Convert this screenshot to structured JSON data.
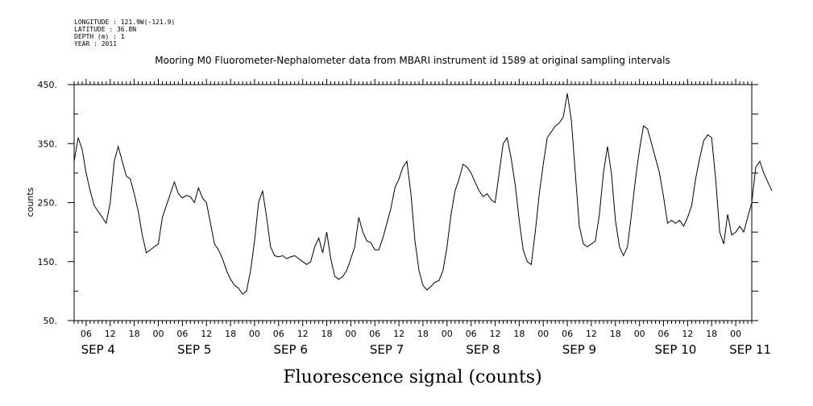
{
  "header": {
    "meta_lines": [
      "LONGITUDE : 121.9W(-121.9)",
      "LATITUDE : 36.8N",
      "DEPTH (m) : 1",
      "YEAR : 2011"
    ],
    "title": "Mooring M0 Fluorometer-Nephalometer data from MBARI instrument id 1589 at original sampling intervals"
  },
  "chart_data": {
    "type": "line",
    "title": "Mooring M0 Fluorometer-Nephalometer data from MBARI instrument id 1589 at original sampling intervals",
    "xlabel": "Fluorescence signal (counts)",
    "ylabel": "counts",
    "ylim": [
      50,
      450
    ],
    "yticks": [
      50,
      150,
      250,
      350,
      450
    ],
    "ytick_labels": [
      "50.",
      "150.",
      "250.",
      "350.",
      "450."
    ],
    "xlim": [
      "2011-09-04T03:00",
      "2011-09-11T04:00"
    ],
    "hour_tick_labels": [
      "06",
      "12",
      "18",
      "00",
      "06",
      "12",
      "18",
      "00",
      "06",
      "12",
      "18",
      "00",
      "06",
      "12",
      "18",
      "00",
      "06",
      "12",
      "18",
      "00",
      "06",
      "12",
      "18",
      "00",
      "06",
      "12",
      "18",
      "00"
    ],
    "day_labels": [
      "SEP  4",
      "SEP  5",
      "SEP  6",
      "SEP  7",
      "SEP  8",
      "SEP  9",
      "SEP 10",
      "SEP 11"
    ],
    "grid": false,
    "series": [
      {
        "color": "#000000",
        "points": [
          [
            "2011-09-04T03:00",
            320
          ],
          [
            "2011-09-04T04:00",
            360
          ],
          [
            "2011-09-04T05:00",
            340
          ],
          [
            "2011-09-04T06:00",
            300
          ],
          [
            "2011-09-04T07:00",
            270
          ],
          [
            "2011-09-04T08:00",
            245
          ],
          [
            "2011-09-04T09:00",
            235
          ],
          [
            "2011-09-04T10:00",
            225
          ],
          [
            "2011-09-04T11:00",
            215
          ],
          [
            "2011-09-04T12:00",
            250
          ],
          [
            "2011-09-04T13:00",
            320
          ],
          [
            "2011-09-04T14:00",
            345
          ],
          [
            "2011-09-04T15:00",
            320
          ],
          [
            "2011-09-04T16:00",
            295
          ],
          [
            "2011-09-04T17:00",
            290
          ],
          [
            "2011-09-04T18:00",
            265
          ],
          [
            "2011-09-04T19:00",
            235
          ],
          [
            "2011-09-04T20:00",
            195
          ],
          [
            "2011-09-04T21:00",
            165
          ],
          [
            "2011-09-04T22:00",
            170
          ],
          [
            "2011-09-04T23:00",
            175
          ],
          [
            "2011-09-05T00:00",
            180
          ],
          [
            "2011-09-05T01:00",
            225
          ],
          [
            "2011-09-05T02:00",
            245
          ],
          [
            "2011-09-05T03:00",
            265
          ],
          [
            "2011-09-05T04:00",
            285
          ],
          [
            "2011-09-05T05:00",
            265
          ],
          [
            "2011-09-05T06:00",
            258
          ],
          [
            "2011-09-05T07:00",
            262
          ],
          [
            "2011-09-05T08:00",
            260
          ],
          [
            "2011-09-05T09:00",
            250
          ],
          [
            "2011-09-05T10:00",
            275
          ],
          [
            "2011-09-05T11:00",
            258
          ],
          [
            "2011-09-05T12:00",
            250
          ],
          [
            "2011-09-05T13:00",
            215
          ],
          [
            "2011-09-05T14:00",
            180
          ],
          [
            "2011-09-05T15:00",
            170
          ],
          [
            "2011-09-05T16:00",
            155
          ],
          [
            "2011-09-05T17:00",
            135
          ],
          [
            "2011-09-05T18:00",
            120
          ],
          [
            "2011-09-05T19:00",
            110
          ],
          [
            "2011-09-05T20:00",
            105
          ],
          [
            "2011-09-05T21:00",
            95
          ],
          [
            "2011-09-05T22:00",
            100
          ],
          [
            "2011-09-05T23:00",
            135
          ],
          [
            "2011-09-06T00:00",
            185
          ],
          [
            "2011-09-06T01:00",
            250
          ],
          [
            "2011-09-06T02:00",
            270
          ],
          [
            "2011-09-06T03:00",
            225
          ],
          [
            "2011-09-06T04:00",
            175
          ],
          [
            "2011-09-06T05:00",
            160
          ],
          [
            "2011-09-06T06:00",
            158
          ],
          [
            "2011-09-06T07:00",
            160
          ],
          [
            "2011-09-06T08:00",
            155
          ],
          [
            "2011-09-06T09:00",
            158
          ],
          [
            "2011-09-06T10:00",
            160
          ],
          [
            "2011-09-06T11:00",
            155
          ],
          [
            "2011-09-06T12:00",
            150
          ],
          [
            "2011-09-06T13:00",
            145
          ],
          [
            "2011-09-06T14:00",
            150
          ],
          [
            "2011-09-06T15:00",
            175
          ],
          [
            "2011-09-06T16:00",
            190
          ],
          [
            "2011-09-06T17:00",
            165
          ],
          [
            "2011-09-06T18:00",
            200
          ],
          [
            "2011-09-06T19:00",
            155
          ],
          [
            "2011-09-06T20:00",
            125
          ],
          [
            "2011-09-06T21:00",
            120
          ],
          [
            "2011-09-06T22:00",
            125
          ],
          [
            "2011-09-06T23:00",
            135
          ],
          [
            "2011-09-07T00:00",
            155
          ],
          [
            "2011-09-07T01:00",
            175
          ],
          [
            "2011-09-07T02:00",
            225
          ],
          [
            "2011-09-07T03:00",
            200
          ],
          [
            "2011-09-07T04:00",
            185
          ],
          [
            "2011-09-07T05:00",
            182
          ],
          [
            "2011-09-07T06:00",
            170
          ],
          [
            "2011-09-07T07:00",
            170
          ],
          [
            "2011-09-07T08:00",
            190
          ],
          [
            "2011-09-07T09:00",
            215
          ],
          [
            "2011-09-07T10:00",
            240
          ],
          [
            "2011-09-07T11:00",
            275
          ],
          [
            "2011-09-07T12:00",
            290
          ],
          [
            "2011-09-07T13:00",
            310
          ],
          [
            "2011-09-07T14:00",
            320
          ],
          [
            "2011-09-07T15:00",
            265
          ],
          [
            "2011-09-07T16:00",
            185
          ],
          [
            "2011-09-07T17:00",
            135
          ],
          [
            "2011-09-07T18:00",
            110
          ],
          [
            "2011-09-07T19:00",
            102
          ],
          [
            "2011-09-07T20:00",
            108
          ],
          [
            "2011-09-07T21:00",
            115
          ],
          [
            "2011-09-07T22:00",
            118
          ],
          [
            "2011-09-07T23:00",
            135
          ],
          [
            "2011-09-08T00:00",
            175
          ],
          [
            "2011-09-08T01:00",
            230
          ],
          [
            "2011-09-08T02:00",
            270
          ],
          [
            "2011-09-08T03:00",
            290
          ],
          [
            "2011-09-08T04:00",
            315
          ],
          [
            "2011-09-08T05:00",
            310
          ],
          [
            "2011-09-08T06:00",
            300
          ],
          [
            "2011-09-08T07:00",
            285
          ],
          [
            "2011-09-08T08:00",
            270
          ],
          [
            "2011-09-08T09:00",
            260
          ],
          [
            "2011-09-08T10:00",
            265
          ],
          [
            "2011-09-08T11:00",
            255
          ],
          [
            "2011-09-08T12:00",
            250
          ],
          [
            "2011-09-08T13:00",
            300
          ],
          [
            "2011-09-08T14:00",
            350
          ],
          [
            "2011-09-08T15:00",
            360
          ],
          [
            "2011-09-08T16:00",
            325
          ],
          [
            "2011-09-08T17:00",
            280
          ],
          [
            "2011-09-08T18:00",
            220
          ],
          [
            "2011-09-08T19:00",
            170
          ],
          [
            "2011-09-08T20:00",
            150
          ],
          [
            "2011-09-08T21:00",
            145
          ],
          [
            "2011-09-08T22:00",
            200
          ],
          [
            "2011-09-08T23:00",
            265
          ],
          [
            "2011-09-09T00:00",
            315
          ],
          [
            "2011-09-09T01:00",
            360
          ],
          [
            "2011-09-09T02:00",
            370
          ],
          [
            "2011-09-09T03:00",
            380
          ],
          [
            "2011-09-09T04:00",
            385
          ],
          [
            "2011-09-09T05:00",
            395
          ],
          [
            "2011-09-09T06:00",
            435
          ],
          [
            "2011-09-09T07:00",
            390
          ],
          [
            "2011-09-09T08:00",
            300
          ],
          [
            "2011-09-09T09:00",
            210
          ],
          [
            "2011-09-09T10:00",
            180
          ],
          [
            "2011-09-09T11:00",
            175
          ],
          [
            "2011-09-09T12:00",
            180
          ],
          [
            "2011-09-09T13:00",
            185
          ],
          [
            "2011-09-09T14:00",
            230
          ],
          [
            "2011-09-09T15:00",
            300
          ],
          [
            "2011-09-09T16:00",
            345
          ],
          [
            "2011-09-09T17:00",
            300
          ],
          [
            "2011-09-09T18:00",
            220
          ],
          [
            "2011-09-09T19:00",
            175
          ],
          [
            "2011-09-09T20:00",
            160
          ],
          [
            "2011-09-09T21:00",
            175
          ],
          [
            "2011-09-09T22:00",
            230
          ],
          [
            "2011-09-09T23:00",
            290
          ],
          [
            "2011-09-10T00:00",
            340
          ],
          [
            "2011-09-10T01:00",
            380
          ],
          [
            "2011-09-10T02:00",
            375
          ],
          [
            "2011-09-10T03:00",
            350
          ],
          [
            "2011-09-10T04:00",
            325
          ],
          [
            "2011-09-10T05:00",
            300
          ],
          [
            "2011-09-10T06:00",
            260
          ],
          [
            "2011-09-10T07:00",
            215
          ],
          [
            "2011-09-10T08:00",
            220
          ],
          [
            "2011-09-10T09:00",
            215
          ],
          [
            "2011-09-10T10:00",
            220
          ],
          [
            "2011-09-10T11:00",
            210
          ],
          [
            "2011-09-10T12:00",
            225
          ],
          [
            "2011-09-10T13:00",
            245
          ],
          [
            "2011-09-10T14:00",
            290
          ],
          [
            "2011-09-10T15:00",
            325
          ],
          [
            "2011-09-10T16:00",
            355
          ],
          [
            "2011-09-10T17:00",
            365
          ],
          [
            "2011-09-10T18:00",
            360
          ],
          [
            "2011-09-10T19:00",
            290
          ],
          [
            "2011-09-10T20:00",
            200
          ],
          [
            "2011-09-10T21:00",
            180
          ],
          [
            "2011-09-10T22:00",
            230
          ],
          [
            "2011-09-10T23:00",
            195
          ],
          [
            "2011-09-11T00:00",
            200
          ],
          [
            "2011-09-11T01:00",
            210
          ],
          [
            "2011-09-11T02:00",
            200
          ],
          [
            "2011-09-11T03:00",
            225
          ],
          [
            "2011-09-11T04:00",
            250
          ],
          [
            "2011-09-11T05:00",
            310
          ],
          [
            "2011-09-11T06:00",
            320
          ],
          [
            "2011-09-11T07:00",
            300
          ],
          [
            "2011-09-11T08:00",
            285
          ],
          [
            "2011-09-11T09:00",
            270
          ]
        ]
      }
    ]
  }
}
